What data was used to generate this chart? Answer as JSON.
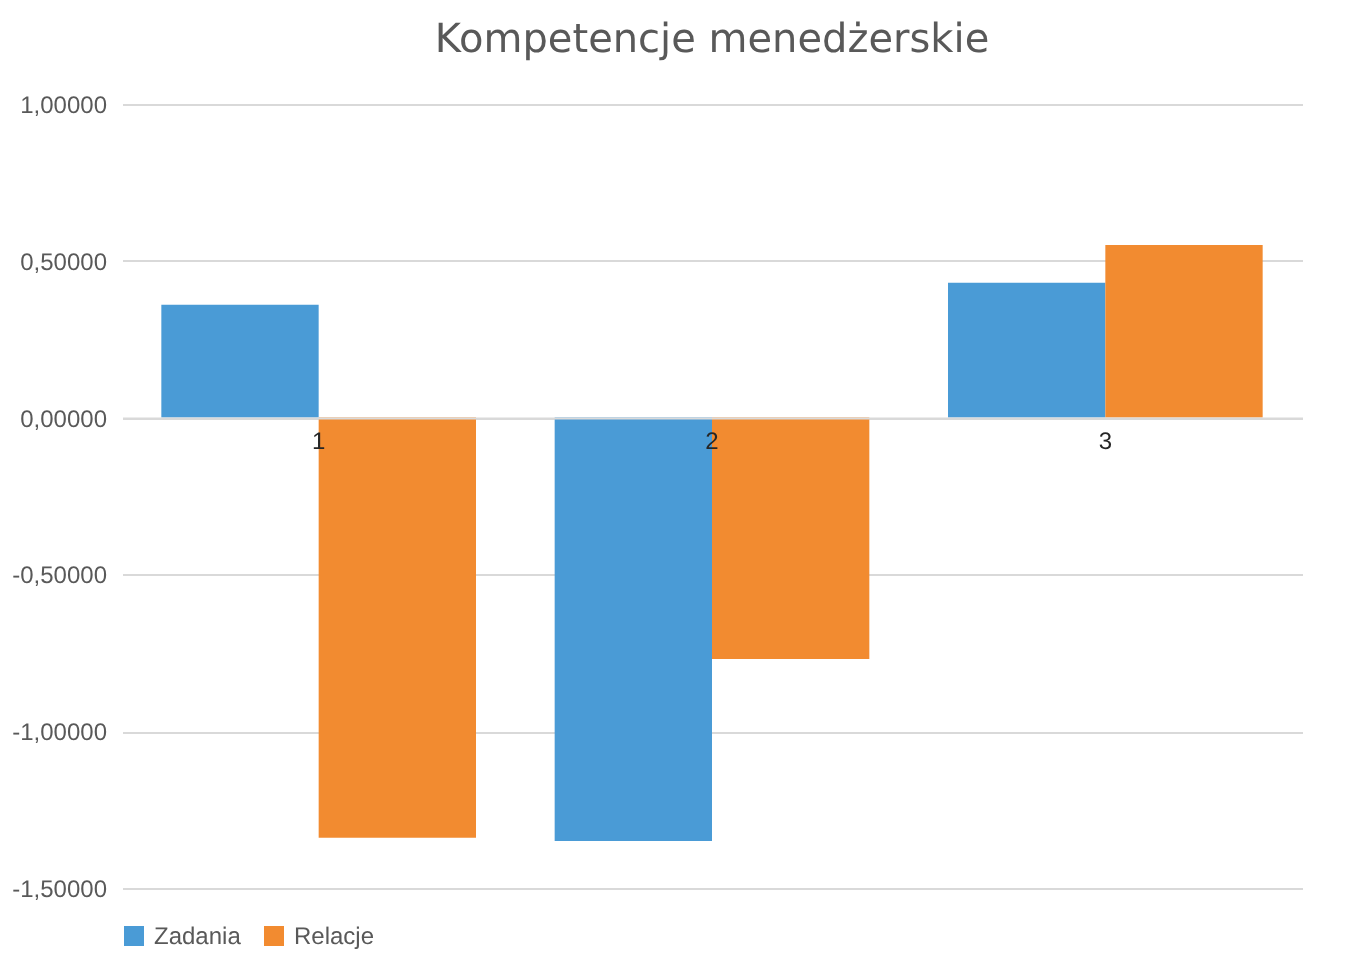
{
  "chart_data": {
    "type": "bar",
    "title": "Kompetencje menedżerskie",
    "categories": [
      "1",
      "2",
      "3"
    ],
    "series": [
      {
        "name": "Zadania",
        "color": "#4a9bd6",
        "values": [
          0.36,
          -1.35,
          0.43
        ]
      },
      {
        "name": "Relacje",
        "color": "#f28b30",
        "values": [
          -1.34,
          -0.77,
          0.55
        ]
      }
    ],
    "ylim": [
      -1.5,
      1
    ],
    "yticks": [
      {
        "value": -1.5,
        "label": "-1,50000"
      },
      {
        "value": -1,
        "label": "-1,00000"
      },
      {
        "value": -0.5,
        "label": "-0,50000"
      },
      {
        "value": 0,
        "label": "0,00000"
      },
      {
        "value": 0.5,
        "label": "0,50000"
      },
      {
        "value": 1,
        "label": "1,00000"
      }
    ],
    "grid": "y",
    "legend": "bottom"
  }
}
